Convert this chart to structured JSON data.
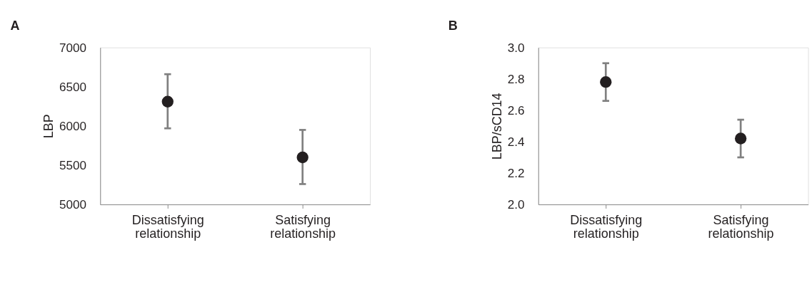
{
  "chart_data": [
    {
      "type": "scatter",
      "title": "A",
      "ylabel": "LBP",
      "categories": [
        "Dissatisfying relationship",
        "Satisfying relationship"
      ],
      "series": [
        {
          "color": "#231f20",
          "values": [
            6310,
            5600
          ],
          "errors": [
            [
              5970,
              6660
            ],
            [
              5260,
              5950
            ]
          ]
        }
      ],
      "ylim": [
        5000,
        7000
      ],
      "yticks": [
        5000,
        5500,
        6000,
        6500,
        7000
      ],
      "grid": false,
      "marker": "circle"
    },
    {
      "type": "scatter",
      "title": "B",
      "ylabel": "LBP/sCD14",
      "categories": [
        "Dissatisfying relationship",
        "Satisfying relationship"
      ],
      "series": [
        {
          "color": "#231f20",
          "values": [
            2.78,
            2.42
          ],
          "errors": [
            [
              2.66,
              2.9
            ],
            [
              2.3,
              2.54
            ]
          ]
        }
      ],
      "ylim": [
        2.0,
        3.0
      ],
      "yticks": [
        {
          "value": 2.0,
          "label": "2.0"
        },
        {
          "value": 2.2,
          "label": "2.2"
        },
        {
          "value": 2.4,
          "label": "2.4"
        },
        {
          "value": 2.6,
          "label": "2.6"
        },
        {
          "value": 2.8,
          "label": "2.8"
        },
        {
          "value": 3.0,
          "label": "3.0"
        }
      ],
      "grid": false,
      "marker": "circle"
    }
  ]
}
